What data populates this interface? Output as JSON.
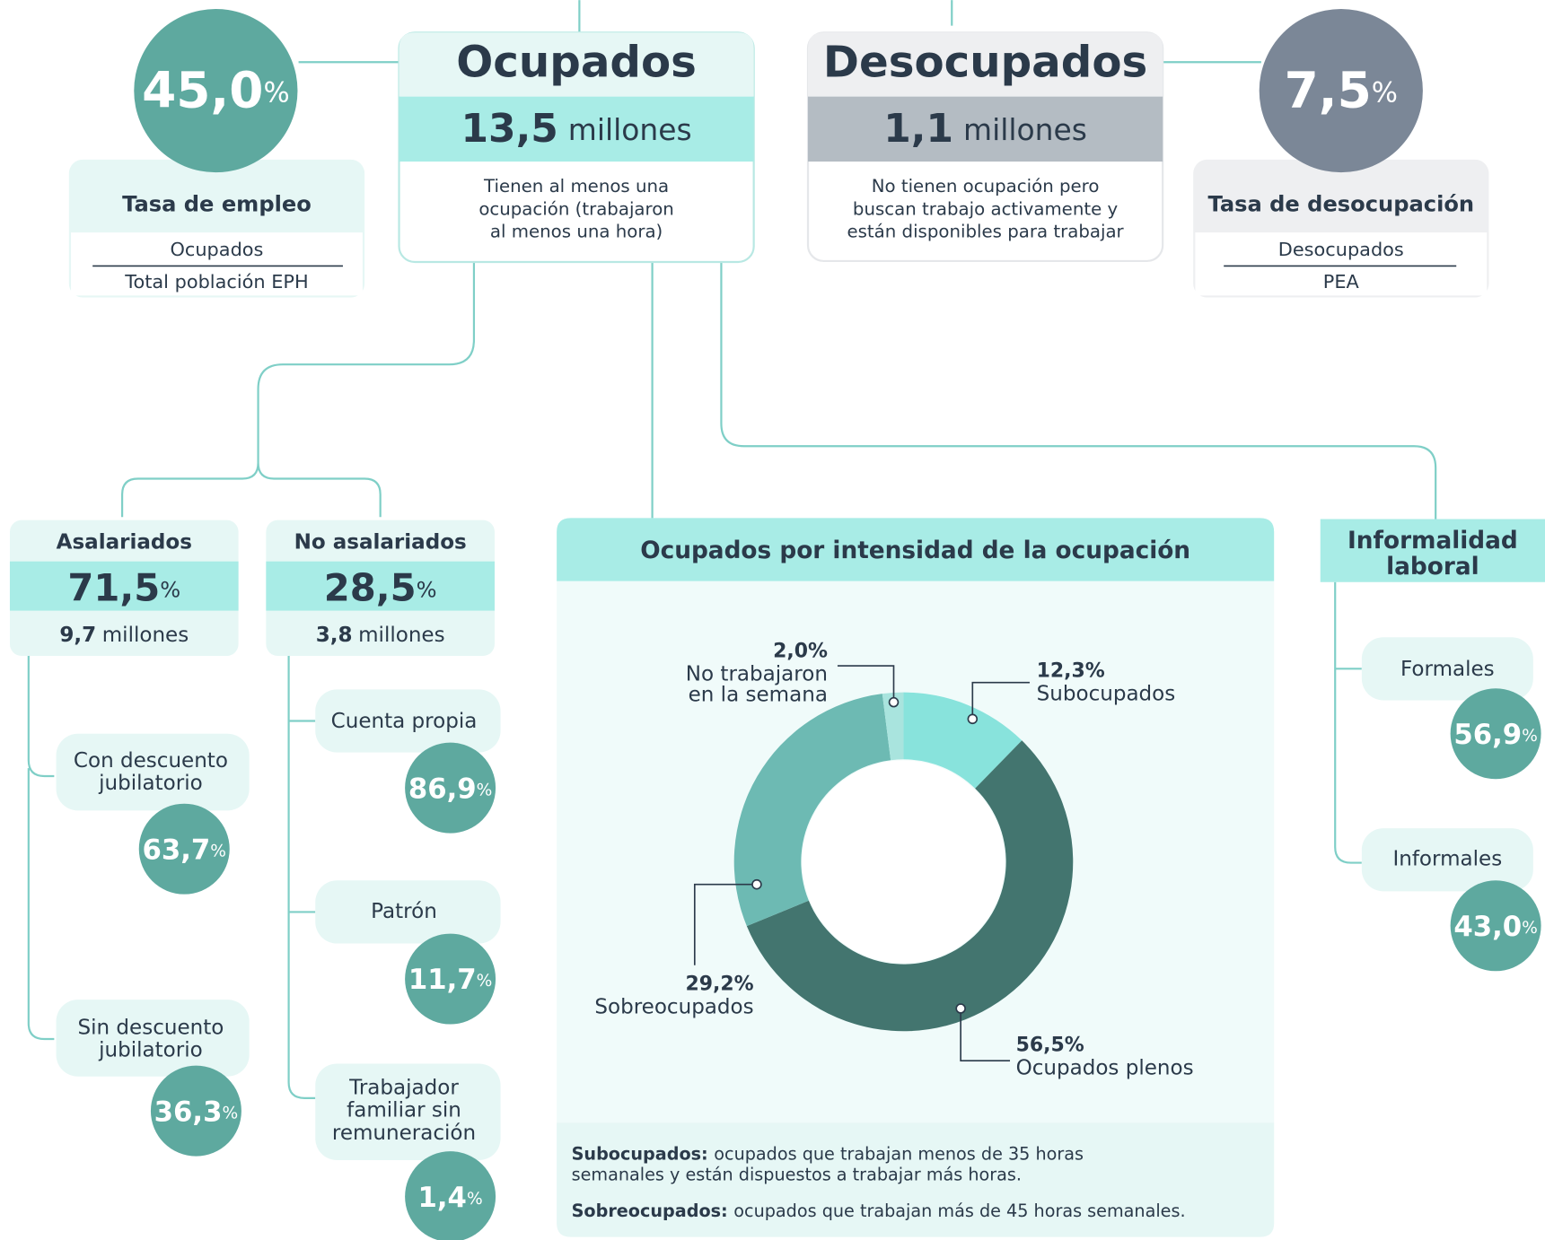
{
  "empleo": {
    "rate": "45,0",
    "unit": "%",
    "title": "Tasa de empleo",
    "numerator": "Ocupados",
    "denominator": "Total población EPH"
  },
  "ocupados": {
    "title": "Ocupados",
    "value": "13,5",
    "unit": "millones",
    "description": [
      "Tienen al menos una",
      "ocupación (trabajaron",
      "al menos una hora)"
    ]
  },
  "desocupados": {
    "title": "Desocupados",
    "value": "1,1",
    "unit": "millones",
    "description": [
      "No tienen ocupación pero",
      "buscan trabajo activamente y",
      "están disponibles para trabajar"
    ]
  },
  "desocupacion": {
    "rate": "7,5",
    "unit": "%",
    "title": "Tasa de desocupación",
    "numerator": "Desocupados",
    "denominator": "PEA"
  },
  "asalariados": {
    "title": "Asalariados",
    "share": "71,5",
    "unit": "%",
    "count": "9,7",
    "count_unit": "millones",
    "items": [
      {
        "label": [
          "Con descuento",
          "jubilatorio"
        ],
        "share": "63,7",
        "unit": "%"
      },
      {
        "label": [
          "Sin descuento",
          "jubilatorio"
        ],
        "share": "36,3",
        "unit": "%"
      }
    ]
  },
  "no_asalariados": {
    "title": "No asalariados",
    "share": "28,5",
    "unit": "%",
    "count": "3,8",
    "count_unit": "millones",
    "items": [
      {
        "label": [
          "Cuenta propia"
        ],
        "share": "86,9",
        "unit": "%"
      },
      {
        "label": [
          "Patrón"
        ],
        "share": "11,7",
        "unit": "%"
      },
      {
        "label": [
          "Trabajador",
          "familiar sin",
          "remuneración"
        ],
        "share": "1,4",
        "unit": "%"
      }
    ]
  },
  "intensity": {
    "type": "pie",
    "title": "Ocupados por intensidad de la ocupación",
    "categories": [
      [
        "Subocupados"
      ],
      [
        "Ocupados plenos"
      ],
      [
        "Sobreocupados"
      ],
      [
        "No trabajaron",
        "en la semana"
      ]
    ],
    "values": [
      12.3,
      56.5,
      29.2,
      2.0
    ],
    "value_labels": [
      "12,3%",
      "56,5%",
      "29,2%",
      "2,0%"
    ],
    "colors": [
      "#88e3dc",
      "#43756f",
      "#6dbab3",
      "#a9e4de"
    ]
  },
  "informalidad": {
    "title": [
      "Informalidad",
      "laboral"
    ],
    "items": [
      {
        "label": [
          "Formales"
        ],
        "share": "56,9",
        "unit": "%"
      },
      {
        "label": [
          "Informales"
        ],
        "share": "43,0",
        "unit": "%"
      }
    ]
  },
  "notes": [
    {
      "term": "Subocupados:",
      "text": [
        "ocupados que trabajan menos de 35 horas",
        "semanales y están dispuestos a trabajar más horas."
      ]
    },
    {
      "term": "Sobreocupados:",
      "text": [
        "ocupados que trabajan más de 45 horas semanales."
      ]
    }
  ]
}
